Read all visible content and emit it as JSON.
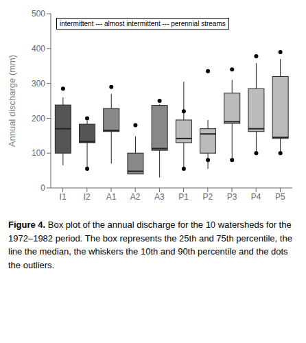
{
  "chart_data": {
    "type": "box",
    "categories": [
      "I1",
      "I2",
      "A1",
      "A2",
      "A3",
      "P1",
      "P2",
      "P3",
      "P4",
      "P5"
    ],
    "boxes": [
      {
        "q10": 65,
        "q25": 100,
        "median": 170,
        "q75": 238,
        "q90": 260,
        "outliers": [
          285
        ]
      },
      {
        "q10": 55,
        "q25": 130,
        "median": 133,
        "q75": 183,
        "q90": 193,
        "outliers": [
          55,
          200
        ]
      },
      {
        "q10": 70,
        "q25": 162,
        "median": 165,
        "q75": 228,
        "q90": 270,
        "outliers": [
          290
        ]
      },
      {
        "q10": 60,
        "q25": 40,
        "median": 48,
        "q75": 100,
        "q90": 148,
        "outliers": [
          180
        ]
      },
      {
        "q10": 30,
        "q25": 108,
        "median": 113,
        "q75": 237,
        "q90": 240,
        "outliers": [
          250
        ]
      },
      {
        "q10": 55,
        "q25": 130,
        "median": 142,
        "q75": 195,
        "q90": 305,
        "outliers": [
          55,
          220
        ]
      },
      {
        "q10": 55,
        "q25": 100,
        "median": 155,
        "q75": 170,
        "q90": 195,
        "outliers": [
          80,
          335
        ]
      },
      {
        "q10": 78,
        "q25": 185,
        "median": 190,
        "q75": 272,
        "q90": 310,
        "outliers": [
          80,
          340
        ]
      },
      {
        "q10": 100,
        "q25": 162,
        "median": 170,
        "q75": 285,
        "q90": 358,
        "outliers": [
          100,
          378
        ]
      },
      {
        "q10": 100,
        "q25": 142,
        "median": 145,
        "q75": 320,
        "q90": 370,
        "outliers": [
          100,
          390
        ]
      }
    ],
    "colors": [
      "#555555",
      "#555555",
      "#888888",
      "#888888",
      "#888888",
      "#bbbbbb",
      "#bbbbbb",
      "#bbbbbb",
      "#bbbbbb",
      "#bbbbbb"
    ],
    "ylabel": "Annual discharge (mm)",
    "ylim": [
      0,
      500
    ],
    "yticks": [
      0,
      100,
      200,
      300,
      400,
      500
    ],
    "annotations": [
      "intermittent --- almost intermittent --- perennial streams"
    ],
    "caption_label": "Figure 4.",
    "caption": "Box plot of the annual discharge for the 10 watersheds for the 1972–1982 period. The box represents the 25th and 75th percentile, the line the median, the whiskers the 10th and 90th percentile and the dots the outliers."
  }
}
